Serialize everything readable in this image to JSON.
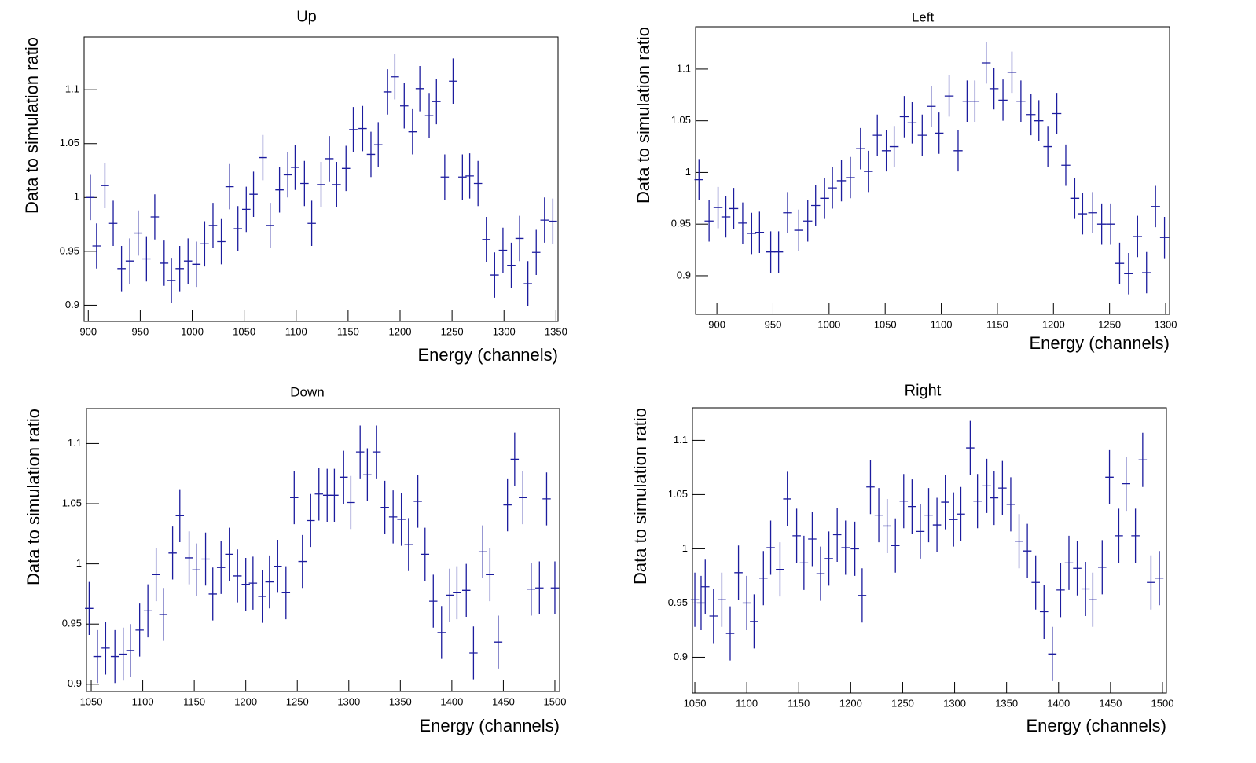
{
  "chart_data": [
    {
      "type": "errorbar",
      "title": "Up",
      "x_label": "Energy (channels)",
      "y_label": "Data to simulation ratio",
      "color": "#1c1c9e",
      "xlim": [
        896,
        1352
      ],
      "ylim": [
        0.885,
        1.149
      ],
      "xticks": [
        900,
        950,
        1000,
        1050,
        1100,
        1150,
        1200,
        1250,
        1300,
        1350
      ],
      "yticks": [
        0.9,
        0.95,
        1,
        1.05,
        1.1
      ],
      "xerr": 4,
      "yerr": 0.021,
      "x": [
        902,
        908,
        916,
        924,
        932,
        940,
        948,
        956,
        964,
        973,
        980,
        988,
        996,
        1004,
        1012,
        1020,
        1028,
        1036,
        1044,
        1052,
        1059,
        1068,
        1075,
        1084,
        1092,
        1099,
        1108,
        1115,
        1124,
        1132,
        1139,
        1148,
        1155,
        1164,
        1172,
        1179,
        1188,
        1195,
        1204,
        1212,
        1219,
        1228,
        1235,
        1243,
        1251,
        1260,
        1267,
        1275,
        1283,
        1291,
        1299,
        1307,
        1315,
        1323,
        1331,
        1339,
        1347
      ],
      "values": [
        1.0,
        0.955,
        1.011,
        0.976,
        0.934,
        0.941,
        0.967,
        0.943,
        0.982,
        0.939,
        0.923,
        0.934,
        0.941,
        0.938,
        0.957,
        0.974,
        0.959,
        1.01,
        0.971,
        0.989,
        1.003,
        1.037,
        0.974,
        1.007,
        1.021,
        1.028,
        1.013,
        0.976,
        1.012,
        1.036,
        1.012,
        1.027,
        1.063,
        1.064,
        1.04,
        1.049,
        1.098,
        1.112,
        1.085,
        1.061,
        1.101,
        1.076,
        1.089,
        1.019,
        1.108,
        1.019,
        1.02,
        1.013,
        0.961,
        0.928,
        0.951,
        0.937,
        0.962,
        0.92,
        0.949,
        0.979,
        0.978
      ]
    },
    {
      "type": "errorbar",
      "title": "Left",
      "x_label": "Energy (channels)",
      "y_label": "Data to simulation ratio",
      "color": "#1c1c9e",
      "xlim": [
        881,
        1303.5
      ],
      "ylim": [
        0.8627,
        1.141
      ],
      "xticks": [
        900,
        950,
        1000,
        1050,
        1100,
        1150,
        1200,
        1250,
        1300
      ],
      "yticks": [
        0.9,
        0.95,
        1,
        1.05,
        1.1
      ],
      "xerr": 4,
      "yerr": 0.02,
      "x": [
        884,
        893,
        901,
        908,
        915,
        923,
        931,
        938,
        948,
        955,
        963,
        973,
        981,
        988,
        996,
        1003,
        1011,
        1019,
        1028,
        1035,
        1043,
        1051,
        1058,
        1067,
        1074,
        1083,
        1091,
        1098,
        1107,
        1115,
        1123,
        1130,
        1140,
        1147,
        1155,
        1163,
        1171,
        1180,
        1187,
        1195,
        1203,
        1211,
        1219,
        1226,
        1235,
        1243,
        1251,
        1259,
        1267,
        1275,
        1283,
        1291,
        1299
      ],
      "values": [
        0.993,
        0.953,
        0.966,
        0.957,
        0.965,
        0.951,
        0.941,
        0.942,
        0.923,
        0.923,
        0.961,
        0.944,
        0.953,
        0.968,
        0.975,
        0.985,
        0.992,
        0.995,
        1.023,
        1.001,
        1.036,
        1.021,
        1.025,
        1.054,
        1.048,
        1.036,
        1.064,
        1.038,
        1.074,
        1.021,
        1.069,
        1.069,
        1.106,
        1.081,
        1.07,
        1.097,
        1.069,
        1.056,
        1.05,
        1.025,
        1.057,
        1.007,
        0.975,
        0.96,
        0.961,
        0.95,
        0.95,
        0.912,
        0.902,
        0.938,
        0.903,
        0.967,
        0.937
      ]
    },
    {
      "type": "errorbar",
      "title": "Down",
      "x_label": "Energy (channels)",
      "y_label": "Data to simulation ratio",
      "color": "#1c1c9e",
      "xlim": [
        1045.4,
        1504.6
      ],
      "ylim": [
        0.894,
        1.129
      ],
      "xticks": [
        1050,
        1100,
        1150,
        1200,
        1250,
        1300,
        1350,
        1400,
        1450,
        1500
      ],
      "yticks": [
        0.9,
        0.95,
        1,
        1.05,
        1.1
      ],
      "xerr": 4,
      "yerr": 0.022,
      "x": [
        1048,
        1056,
        1064,
        1073,
        1081,
        1088,
        1097,
        1105,
        1113,
        1120,
        1129,
        1136,
        1145,
        1152,
        1161,
        1168,
        1176,
        1184,
        1192,
        1200,
        1207,
        1216,
        1223,
        1231,
        1239,
        1247,
        1255,
        1263,
        1271,
        1279,
        1286,
        1295,
        1302,
        1311,
        1318,
        1327,
        1335,
        1343,
        1351,
        1358,
        1367,
        1374,
        1382,
        1390,
        1398,
        1405,
        1414,
        1421,
        1430,
        1437,
        1445,
        1454,
        1461,
        1469,
        1477,
        1485,
        1492,
        1500
      ],
      "values": [
        0.963,
        0.923,
        0.93,
        0.923,
        0.925,
        0.928,
        0.945,
        0.961,
        0.991,
        0.958,
        1.009,
        1.04,
        1.005,
        0.995,
        1.004,
        0.975,
        0.997,
        1.008,
        0.99,
        0.983,
        0.984,
        0.973,
        0.985,
        0.998,
        0.976,
        1.055,
        1.002,
        1.036,
        1.058,
        1.057,
        1.057,
        1.072,
        1.051,
        1.093,
        1.074,
        1.093,
        1.047,
        1.039,
        1.037,
        1.016,
        1.052,
        1.008,
        0.969,
        0.943,
        0.974,
        0.976,
        0.978,
        0.926,
        1.01,
        0.991,
        0.935,
        1.049,
        1.087,
        1.055,
        0.979,
        0.98,
        1.054,
        0.98
      ]
    },
    {
      "type": "errorbar",
      "title": "Right",
      "x_label": "Energy (channels)",
      "y_label": "Data to simulation ratio",
      "color": "#1c1c9e",
      "xlim": [
        1047.7,
        1503.8
      ],
      "ylim": [
        0.867,
        1.13
      ],
      "xticks": [
        1050,
        1100,
        1150,
        1200,
        1250,
        1300,
        1350,
        1400,
        1450,
        1500
      ],
      "yticks": [
        0.9,
        0.95,
        1,
        1.05,
        1.1
      ],
      "xerr": 4,
      "yerr": 0.025,
      "x": [
        1050,
        1056,
        1060,
        1068,
        1076,
        1084,
        1092,
        1100,
        1107,
        1116,
        1123,
        1132,
        1139,
        1148,
        1155,
        1163,
        1171,
        1179,
        1187,
        1195,
        1204,
        1211,
        1219,
        1227,
        1235,
        1243,
        1251,
        1259,
        1267,
        1275,
        1283,
        1291,
        1299,
        1306,
        1315,
        1322,
        1331,
        1338,
        1346,
        1354,
        1362,
        1370,
        1378,
        1386,
        1394,
        1402,
        1410,
        1418,
        1426,
        1433,
        1442,
        1449,
        1458,
        1465,
        1474,
        1481,
        1489,
        1497
      ],
      "values": [
        0.953,
        0.95,
        0.965,
        0.938,
        0.953,
        0.922,
        0.978,
        0.95,
        0.933,
        0.973,
        1.001,
        0.981,
        1.046,
        1.012,
        0.987,
        1.009,
        0.977,
        0.991,
        1.013,
        1.001,
        1.0,
        0.957,
        1.057,
        1.031,
        1.021,
        1.003,
        1.044,
        1.039,
        1.016,
        1.031,
        1.022,
        1.043,
        1.027,
        1.032,
        1.093,
        1.044,
        1.058,
        1.047,
        1.056,
        1.041,
        1.007,
        0.998,
        0.969,
        0.942,
        0.903,
        0.962,
        0.987,
        0.982,
        0.963,
        0.953,
        0.983,
        1.066,
        1.012,
        1.06,
        1.012,
        1.082,
        0.969,
        0.973
      ]
    }
  ]
}
